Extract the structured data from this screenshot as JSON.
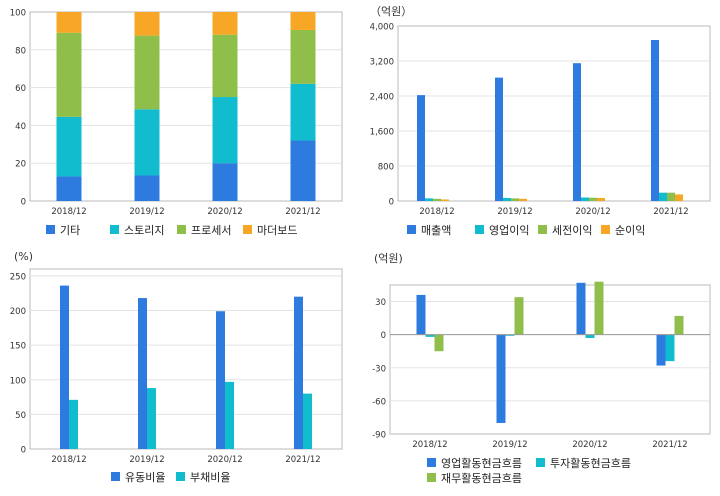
{
  "colors": {
    "blue": "#2e7be0",
    "teal": "#11bccf",
    "green": "#8fbf4a",
    "orange": "#f7a725",
    "plot_border": "#bbbbbb",
    "grid": "#e3e3e3",
    "axis_text": "#333333"
  },
  "chart_data": [
    {
      "type": "bar",
      "stacked": true,
      "unit_label": "",
      "categories": [
        "2018/12",
        "2019/12",
        "2020/12",
        "2021/12"
      ],
      "ylim": [
        0,
        100
      ],
      "yticks": [
        0,
        20,
        40,
        60,
        80,
        100
      ],
      "ytick_labels": [
        "0",
        "20",
        "40",
        "60",
        "80",
        "100"
      ],
      "grid": true,
      "legend_position": "bottom",
      "series": [
        {
          "name": "기타",
          "color": "blue",
          "values": [
            13,
            13.5,
            20,
            32
          ]
        },
        {
          "name": "스토리지",
          "color": "teal",
          "values": [
            31.5,
            35,
            35,
            30
          ]
        },
        {
          "name": "프로세서",
          "color": "green",
          "values": [
            44.5,
            39,
            33,
            28.5
          ]
        },
        {
          "name": "마더보드",
          "color": "orange",
          "values": [
            11,
            12.5,
            12,
            9.5
          ]
        }
      ]
    },
    {
      "type": "bar",
      "stacked": false,
      "unit_label": "（억원）",
      "categories": [
        "2018/12",
        "2019/12",
        "2020/12",
        "2021/12"
      ],
      "ylim": [
        0,
        4000
      ],
      "yticks": [
        0,
        800,
        1600,
        2400,
        3200,
        4000
      ],
      "ytick_labels": [
        "0",
        "800",
        "1,600",
        "2,400",
        "3,200",
        "4,000"
      ],
      "grid": true,
      "legend_position": "bottom",
      "series": [
        {
          "name": "매출액",
          "color": "blue",
          "values": [
            2420,
            2820,
            3150,
            3680
          ]
        },
        {
          "name": "영업이익",
          "color": "teal",
          "values": [
            60,
            70,
            80,
            190
          ]
        },
        {
          "name": "세전이익",
          "color": "green",
          "values": [
            50,
            60,
            75,
            190
          ]
        },
        {
          "name": "순이익",
          "color": "orange",
          "values": [
            35,
            50,
            70,
            150
          ]
        }
      ]
    },
    {
      "type": "bar",
      "stacked": false,
      "unit_label": "(%)",
      "categories": [
        "2018/12",
        "2019/12",
        "2020/12",
        "2021/12"
      ],
      "ylim": [
        0,
        260
      ],
      "yticks": [
        0,
        50,
        100,
        150,
        200,
        250
      ],
      "ytick_labels": [
        "0",
        "50",
        "100",
        "150",
        "200",
        "250"
      ],
      "grid": true,
      "legend_position": "bottom",
      "series": [
        {
          "name": "유동비율",
          "color": "blue",
          "values": [
            236,
            218,
            199,
            220
          ]
        },
        {
          "name": "부채비율",
          "color": "teal",
          "values": [
            71,
            88,
            97,
            80
          ]
        }
      ]
    },
    {
      "type": "bar",
      "stacked": false,
      "unit_label": "(억원)",
      "categories": [
        "2018/12",
        "2019/12",
        "2020/12",
        "2021/12"
      ],
      "ylim": [
        -90,
        45
      ],
      "yticks": [
        -90,
        -60,
        -30,
        0,
        30
      ],
      "ytick_labels": [
        "-90",
        "-60",
        "-30",
        "0",
        "30"
      ],
      "grid": true,
      "legend_position": "bottom",
      "series": [
        {
          "name": "영업활동현금흐름",
          "color": "blue",
          "values": [
            36,
            -80,
            47,
            -28
          ]
        },
        {
          "name": "투자활동현금흐름",
          "color": "teal",
          "values": [
            -2,
            -1,
            -3,
            -24
          ]
        },
        {
          "name": "재무활동현금흐름",
          "color": "green",
          "values": [
            -15,
            34,
            48,
            17
          ]
        }
      ]
    }
  ]
}
